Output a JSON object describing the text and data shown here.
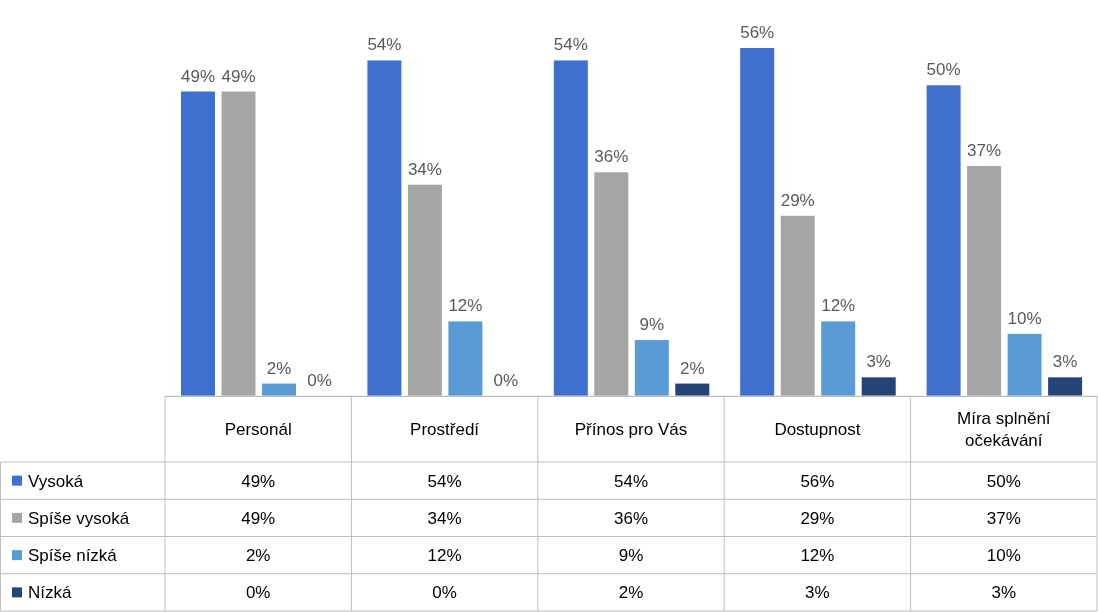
{
  "chart_data": {
    "type": "bar",
    "categories": [
      "Personál",
      "Prostředí",
      "Přínos pro Vás",
      "Dostupnost",
      "Míra splnění očekávání"
    ],
    "series": [
      {
        "name": "Vysoká",
        "color": "#3f6fcf",
        "values": [
          49,
          54,
          54,
          56,
          50
        ],
        "value_labels": [
          "49%",
          "54%",
          "54%",
          "56%",
          "50%"
        ]
      },
      {
        "name": "Spíše vysoká",
        "color": "#a5a5a5",
        "values": [
          49,
          34,
          36,
          29,
          37
        ],
        "value_labels": [
          "49%",
          "34%",
          "36%",
          "29%",
          "37%"
        ]
      },
      {
        "name": "Spíše nízká",
        "color": "#5b9bd5",
        "values": [
          2,
          12,
          9,
          12,
          10
        ],
        "value_labels": [
          "2%",
          "12%",
          "9%",
          "12%",
          "10%"
        ]
      },
      {
        "name": "Nízká",
        "color": "#264478",
        "values": [
          0,
          0,
          2,
          3,
          3
        ],
        "value_labels": [
          "0%",
          "0%",
          "2%",
          "3%",
          "3%"
        ]
      }
    ],
    "legend": "left"
  }
}
